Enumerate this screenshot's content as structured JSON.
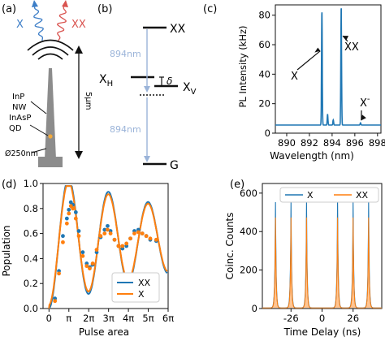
{
  "colors": {
    "blue": "#1f77b4",
    "orange": "#ff7f0e",
    "level_arrow": "#9bb4d9",
    "nanowire": "#8c8c8c",
    "base": "#8c8c8c",
    "qd": "#f2a93b",
    "x_wave": "#3d7ec7",
    "xx_wave": "#d9534f"
  },
  "panel_a": {
    "label": "(a)",
    "x_label": "X",
    "xx_label": "XX",
    "inp": "InP",
    "nw": "NW",
    "inasp": "InAsP",
    "qd": "QD",
    "diameter": "Ø250nm",
    "height": "5μm"
  },
  "panel_b": {
    "label": "(b)",
    "xx": "XX",
    "xh": "X",
    "xh_sub": "H",
    "xv": "X",
    "xv_sub": "V",
    "g": "G",
    "delta": "δ",
    "wl_top": "894nm",
    "wl_bottom": "894nm"
  },
  "panel_c": {
    "label": "(c)",
    "chart_data": {
      "type": "line",
      "ylabel": "PL Intensity (kHz)",
      "xlabel": "Wavelength (nm)",
      "xlim": [
        889,
        898.3
      ],
      "ylim": [
        0,
        87
      ],
      "xticks": [
        890,
        892,
        894,
        896,
        898
      ],
      "yticks": [
        0,
        20,
        40,
        60,
        80
      ],
      "baseline": 5.5,
      "peaks": [
        {
          "x": 893.1,
          "y": 83
        },
        {
          "x": 893.6,
          "y": 13
        },
        {
          "x": 894.1,
          "y": 9
        },
        {
          "x": 894.8,
          "y": 86
        },
        {
          "x": 896.5,
          "y": 7
        }
      ],
      "annotations": [
        {
          "text": "X",
          "target_x": 893.1,
          "target_y": 58
        },
        {
          "text": "XX",
          "target_x": 894.8,
          "target_y": 66
        },
        {
          "text": "X",
          "sup": "-",
          "target_x": 896.5,
          "target_y": 7
        }
      ]
    }
  },
  "panel_d": {
    "label": "(d)",
    "chart_data": {
      "type": "line",
      "ylabel": "Population",
      "xlabel": "Pulse area",
      "xlim": [
        -0.3,
        6
      ],
      "ylim": [
        0,
        1.0
      ],
      "yticks": [
        0.0,
        0.2,
        0.4,
        0.6,
        0.8,
        1.0
      ],
      "xticks": [
        0,
        1,
        2,
        3,
        4,
        5,
        6
      ],
      "xtick_labels": [
        "0",
        "π",
        "2π",
        "3π",
        "4π",
        "5π",
        "6π"
      ],
      "series": [
        {
          "name": "XX",
          "color": "#1f77b4",
          "points": [
            [
              0.3,
              0.08
            ],
            [
              0.5,
              0.3
            ],
            [
              0.7,
              0.58
            ],
            [
              0.9,
              0.72
            ],
            [
              1.0,
              0.79
            ],
            [
              1.1,
              0.85
            ],
            [
              1.2,
              0.83
            ],
            [
              1.35,
              0.77
            ],
            [
              1.5,
              0.62
            ],
            [
              1.7,
              0.45
            ],
            [
              1.9,
              0.36
            ],
            [
              2.05,
              0.33
            ],
            [
              2.2,
              0.35
            ],
            [
              2.4,
              0.45
            ],
            [
              2.6,
              0.57
            ],
            [
              2.8,
              0.63
            ],
            [
              2.95,
              0.66
            ],
            [
              3.1,
              0.62
            ],
            [
              3.3,
              0.55
            ],
            [
              3.5,
              0.5
            ],
            [
              3.7,
              0.48
            ],
            [
              3.9,
              0.5
            ],
            [
              4.1,
              0.56
            ],
            [
              4.3,
              0.62
            ],
            [
              4.5,
              0.63
            ],
            [
              4.7,
              0.6
            ],
            [
              4.9,
              0.58
            ],
            [
              5.1,
              0.55
            ],
            [
              5.4,
              0.54
            ]
          ]
        },
        {
          "name": "X",
          "color": "#ff7f0e",
          "points": [
            [
              0.3,
              0.06
            ],
            [
              0.5,
              0.28
            ],
            [
              0.7,
              0.53
            ],
            [
              0.9,
              0.68
            ],
            [
              1.0,
              0.76
            ],
            [
              1.1,
              0.82
            ],
            [
              1.2,
              0.8
            ],
            [
              1.35,
              0.72
            ],
            [
              1.5,
              0.58
            ],
            [
              1.7,
              0.42
            ],
            [
              1.9,
              0.34
            ],
            [
              2.05,
              0.32
            ],
            [
              2.2,
              0.36
            ],
            [
              2.4,
              0.47
            ],
            [
              2.6,
              0.58
            ],
            [
              2.8,
              0.6
            ],
            [
              2.95,
              0.63
            ],
            [
              3.1,
              0.6
            ],
            [
              3.3,
              0.55
            ],
            [
              3.5,
              0.5
            ],
            [
              3.7,
              0.5
            ],
            [
              3.9,
              0.52
            ],
            [
              4.1,
              0.56
            ],
            [
              4.3,
              0.6
            ],
            [
              4.5,
              0.61
            ],
            [
              4.7,
              0.6
            ],
            [
              4.9,
              0.58
            ],
            [
              5.1,
              0.56
            ],
            [
              5.4,
              0.55
            ]
          ]
        }
      ],
      "fit": {
        "amplitude": 0.35,
        "mean": 0.55,
        "damping": 0.12,
        "period": 2.0
      },
      "legend": "bottom-right"
    }
  },
  "panel_e": {
    "label": "(e)",
    "chart_data": {
      "type": "line",
      "ylabel": "Coinc. Counts",
      "xlabel": "Time Delay (ns)",
      "xlim": [
        -50,
        50
      ],
      "ylim": [
        0,
        650
      ],
      "yticks": [
        0,
        200,
        400,
        600
      ],
      "xticks": [
        -26,
        0,
        26
      ],
      "peak_times": [
        -39,
        -26,
        -13,
        13,
        26,
        39
      ],
      "series": [
        {
          "name": "X",
          "color": "#1f77b4",
          "peak_heights": [
            550,
            560,
            550,
            560,
            560,
            555
          ]
        },
        {
          "name": "XX",
          "color": "#ff7f0e",
          "peak_heights": [
            470,
            470,
            470,
            470,
            470,
            470
          ]
        }
      ],
      "legend": "top"
    }
  }
}
